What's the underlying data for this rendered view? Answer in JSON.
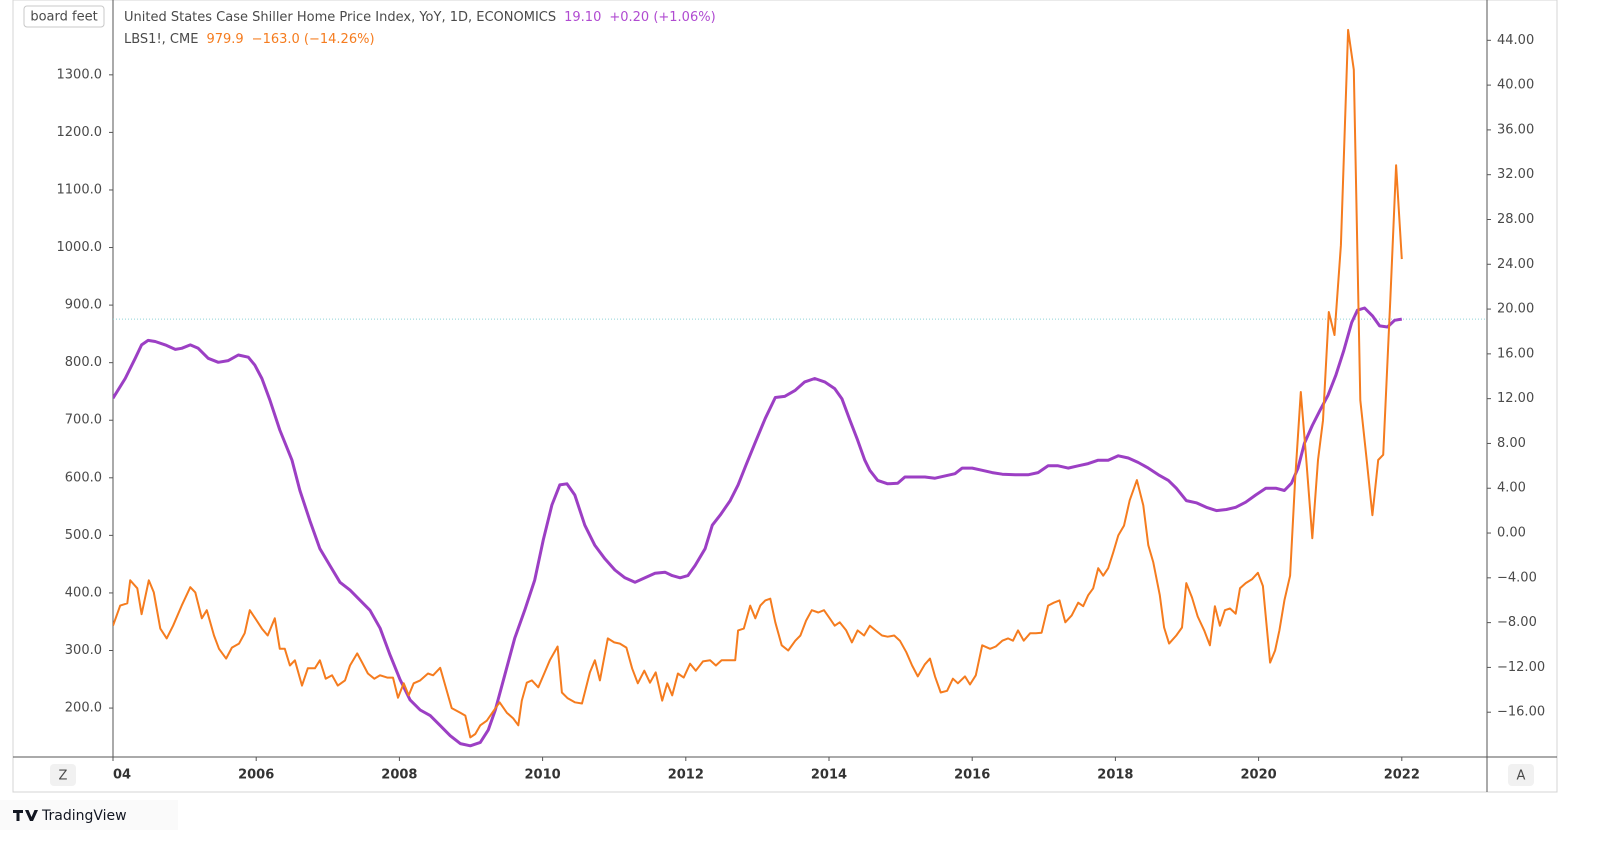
{
  "chart_data": {
    "type": "line",
    "y_axis_label": "board feet",
    "xlim": [
      2004,
      2023.19
    ],
    "xticks": [
      {
        "value": 2004,
        "label": "04"
      },
      2006,
      2008,
      2010,
      2012,
      2014,
      2016,
      2018,
      2020,
      2022
    ],
    "ylim": [
      115,
      1430
    ],
    "yticks": [
      {
        "value": 200,
        "label": "200.0"
      },
      {
        "value": 300,
        "label": "300.0"
      },
      {
        "value": 400,
        "label": "400.0"
      },
      {
        "value": 500,
        "label": "500.0"
      },
      {
        "value": 600,
        "label": "600.0"
      },
      {
        "value": 700,
        "label": "700.0"
      },
      {
        "value": 800,
        "label": "800.0"
      },
      {
        "value": 900,
        "label": "900.0"
      },
      {
        "value": 1000,
        "label": "1000.0"
      },
      {
        "value": 1100,
        "label": "1100.0"
      },
      {
        "value": 1200,
        "label": "1200.0"
      },
      {
        "value": 1300,
        "label": "1300.0"
      }
    ],
    "y2lim": [
      -20,
      47.6
    ],
    "y2ticks": [
      {
        "value": -16,
        "label": "−16.00"
      },
      {
        "value": -12,
        "label": "−12.00"
      },
      {
        "value": -8,
        "label": "−8.00"
      },
      {
        "value": -4,
        "label": "−4.00"
      },
      {
        "value": 0,
        "label": "0.00"
      },
      {
        "value": 4,
        "label": "4.00"
      },
      {
        "value": 8,
        "label": "8.00"
      },
      {
        "value": 12,
        "label": "12.00"
      },
      {
        "value": 16,
        "label": "16.00"
      },
      {
        "value": 20,
        "label": "20.00"
      },
      {
        "value": 24,
        "label": "24.00"
      },
      {
        "value": 28,
        "label": "28.00"
      },
      {
        "value": 32,
        "label": "32.00"
      },
      {
        "value": 36,
        "label": "36.00"
      },
      {
        "value": 40,
        "label": "40.00"
      },
      {
        "value": 44,
        "label": "44.00"
      }
    ],
    "series": [
      {
        "name": "United States Case Shiller Home Price Index, YoY, 1D, ECONOMICS",
        "last_label": "19.10",
        "change_label": "+0.20 (+1.06%)",
        "color": "#9c3fc4",
        "axis": "y2",
        "x": [
          2004.0,
          2004.17,
          2004.31,
          2004.4,
          2004.49,
          2004.59,
          2004.73,
          2004.87,
          2004.96,
          2005.08,
          2005.19,
          2005.33,
          2005.47,
          2005.61,
          2005.75,
          2005.89,
          2005.98,
          2006.08,
          2006.19,
          2006.33,
          2006.5,
          2006.61,
          2006.75,
          2006.89,
          2007.03,
          2007.17,
          2007.31,
          2007.45,
          2007.59,
          2007.73,
          2007.87,
          2008.01,
          2008.15,
          2008.29,
          2008.43,
          2008.57,
          2008.71,
          2008.85,
          2008.99,
          2009.13,
          2009.24,
          2009.34,
          2009.47,
          2009.61,
          2009.75,
          2009.89,
          2010.01,
          2010.13,
          2010.24,
          2010.34,
          2010.45,
          2010.59,
          2010.73,
          2010.87,
          2011.01,
          2011.15,
          2011.29,
          2011.43,
          2011.57,
          2011.71,
          2011.81,
          2011.92,
          2012.03,
          2012.13,
          2012.27,
          2012.37,
          2012.48,
          2012.62,
          2012.73,
          2012.84,
          2012.97,
          2013.11,
          2013.25,
          2013.38,
          2013.53,
          2013.66,
          2013.8,
          2013.94,
          2014.08,
          2014.18,
          2014.29,
          2014.4,
          2014.5,
          2014.57,
          2014.68,
          2014.82,
          2014.96,
          2015.06,
          2015.2,
          2015.34,
          2015.48,
          2015.62,
          2015.76,
          2015.86,
          2016.0,
          2016.14,
          2016.28,
          2016.42,
          2016.6,
          2016.78,
          2016.92,
          2017.06,
          2017.2,
          2017.34,
          2017.48,
          2017.62,
          2017.76,
          2017.9,
          2018.04,
          2018.18,
          2018.32,
          2018.46,
          2018.6,
          2018.74,
          2018.85,
          2018.99,
          2019.13,
          2019.27,
          2019.41,
          2019.55,
          2019.68,
          2019.82,
          2019.96,
          2020.1,
          2020.24,
          2020.36,
          2020.46,
          2020.55,
          2020.64,
          2020.75,
          2020.86,
          2020.97,
          2021.08,
          2021.19,
          2021.3,
          2021.38,
          2021.48,
          2021.59,
          2021.69,
          2021.8,
          2021.9,
          2022.0
        ],
        "values": [
          12.04,
          13.8,
          15.6,
          16.8,
          17.2,
          17.1,
          16.8,
          16.4,
          16.5,
          16.8,
          16.5,
          15.6,
          15.25,
          15.4,
          15.9,
          15.7,
          15.0,
          13.8,
          11.9,
          9.2,
          6.5,
          3.8,
          1.1,
          -1.4,
          -2.9,
          -4.4,
          -5.1,
          -6.0,
          -6.9,
          -8.5,
          -10.9,
          -13.1,
          -14.9,
          -15.8,
          -16.3,
          -17.2,
          -18.1,
          -18.8,
          -19.0,
          -18.7,
          -17.6,
          -15.8,
          -12.7,
          -9.4,
          -6.9,
          -4.2,
          -0.6,
          2.5,
          4.3,
          4.4,
          3.4,
          0.7,
          -1.1,
          -2.3,
          -3.3,
          -4.0,
          -4.4,
          -4.0,
          -3.6,
          -3.5,
          -3.8,
          -4.0,
          -3.8,
          -2.9,
          -1.4,
          0.7,
          1.6,
          2.9,
          4.3,
          6.05,
          8.1,
          10.25,
          12.1,
          12.2,
          12.75,
          13.5,
          13.8,
          13.5,
          12.9,
          12.0,
          10.1,
          8.3,
          6.5,
          5.6,
          4.7,
          4.4,
          4.45,
          5.0,
          5.0,
          5.0,
          4.9,
          5.1,
          5.3,
          5.8,
          5.8,
          5.6,
          5.4,
          5.25,
          5.2,
          5.2,
          5.4,
          6.0,
          6.0,
          5.8,
          6.0,
          6.2,
          6.5,
          6.5,
          6.9,
          6.7,
          6.3,
          5.8,
          5.2,
          4.7,
          4.0,
          2.9,
          2.7,
          2.3,
          2.0,
          2.1,
          2.3,
          2.75,
          3.4,
          4.0,
          4.0,
          3.8,
          4.45,
          5.8,
          8.0,
          9.6,
          11.0,
          12.3,
          14.1,
          16.3,
          18.8,
          19.9,
          20.1,
          19.4,
          18.5,
          18.4,
          19.0,
          19.1
        ]
      },
      {
        "name": "LBS1!, CME",
        "last_label": "979.9",
        "change_label": "−163.0 (−14.26%)",
        "color": "#f57c1f",
        "axis": "y",
        "x": [
          2004.0,
          2004.1,
          2004.2,
          2004.24,
          2004.34,
          2004.4,
          2004.5,
          2004.57,
          2004.66,
          2004.75,
          2004.84,
          2004.96,
          2005.08,
          2005.15,
          2005.24,
          2005.31,
          2005.41,
          2005.48,
          2005.58,
          2005.66,
          2005.76,
          2005.84,
          2005.91,
          2005.98,
          2006.08,
          2006.16,
          2006.26,
          2006.33,
          2006.4,
          2006.47,
          2006.54,
          2006.64,
          2006.72,
          2006.82,
          2006.89,
          2006.97,
          2007.06,
          2007.14,
          2007.24,
          2007.31,
          2007.41,
          2007.48,
          2007.56,
          2007.65,
          2007.73,
          2007.83,
          2007.91,
          2007.98,
          2008.06,
          2008.13,
          2008.2,
          2008.29,
          2008.4,
          2008.47,
          2008.57,
          2008.62,
          2008.73,
          2008.85,
          2008.92,
          2008.99,
          2009.06,
          2009.13,
          2009.22,
          2009.32,
          2009.4,
          2009.5,
          2009.59,
          2009.66,
          2009.71,
          2009.78,
          2009.85,
          2009.94,
          2010.03,
          2010.1,
          2010.21,
          2010.27,
          2010.35,
          2010.45,
          2010.55,
          2010.66,
          2010.73,
          2010.8,
          2010.91,
          2011.0,
          2011.08,
          2011.17,
          2011.25,
          2011.33,
          2011.42,
          2011.5,
          2011.58,
          2011.67,
          2011.74,
          2011.81,
          2011.89,
          2011.97,
          2012.06,
          2012.14,
          2012.24,
          2012.34,
          2012.42,
          2012.5,
          2012.6,
          2012.69,
          2012.73,
          2012.81,
          2012.9,
          2012.97,
          2013.04,
          2013.11,
          2013.18,
          2013.25,
          2013.34,
          2013.43,
          2013.53,
          2013.6,
          2013.68,
          2013.76,
          2013.85,
          2013.93,
          2014.01,
          2014.08,
          2014.15,
          2014.24,
          2014.32,
          2014.4,
          2014.49,
          2014.57,
          2014.65,
          2014.74,
          2014.82,
          2014.91,
          2014.99,
          2015.08,
          2015.16,
          2015.24,
          2015.34,
          2015.41,
          2015.48,
          2015.56,
          2015.65,
          2015.73,
          2015.8,
          2015.9,
          2015.97,
          2016.05,
          2016.14,
          2016.25,
          2016.33,
          2016.42,
          2016.5,
          2016.57,
          2016.64,
          2016.72,
          2016.81,
          2016.89,
          2016.97,
          2017.06,
          2017.14,
          2017.22,
          2017.3,
          2017.39,
          2017.48,
          2017.55,
          2017.62,
          2017.69,
          2017.76,
          2017.83,
          2017.9,
          2017.97,
          2018.04,
          2018.12,
          2018.2,
          2018.3,
          2018.39,
          2018.46,
          2018.53,
          2018.62,
          2018.68,
          2018.75,
          2018.85,
          2018.93,
          2018.99,
          2019.07,
          2019.15,
          2019.24,
          2019.32,
          2019.39,
          2019.46,
          2019.53,
          2019.6,
          2019.68,
          2019.74,
          2019.82,
          2019.91,
          2019.99,
          2020.06,
          2020.16,
          2020.23,
          2020.29,
          2020.36,
          2020.44,
          2020.51,
          2020.59,
          2020.66,
          2020.75,
          2020.83,
          2020.9,
          2020.98,
          2021.06,
          2021.15,
          2021.25,
          2021.33,
          2021.42,
          2021.51,
          2021.59,
          2021.67,
          2021.74,
          2021.84,
          2021.92,
          2022.0
        ],
        "values": [
          343,
          378,
          382,
          422,
          408,
          363,
          422,
          401,
          338,
          321,
          343,
          378,
          410,
          401,
          356,
          370,
          326,
          303,
          286,
          305,
          312,
          330,
          370,
          357,
          338,
          326,
          356,
          303,
          303,
          274,
          283,
          239,
          269,
          269,
          283,
          251,
          257,
          239,
          248,
          274,
          295,
          279,
          260,
          251,
          257,
          253,
          253,
          218,
          243,
          222,
          243,
          248,
          260,
          257,
          270,
          248,
          200,
          192,
          187,
          149,
          155,
          170,
          178,
          196,
          210,
          192,
          182,
          170,
          213,
          244,
          248,
          236,
          262,
          283,
          307,
          227,
          217,
          210,
          208,
          262,
          283,
          248,
          321,
          314,
          312,
          305,
          269,
          243,
          265,
          244,
          262,
          213,
          243,
          222,
          260,
          253,
          277,
          265,
          281,
          283,
          274,
          283,
          283,
          283,
          335,
          338,
          378,
          356,
          378,
          387,
          390,
          349,
          309,
          300,
          317,
          326,
          352,
          370,
          366,
          370,
          356,
          343,
          349,
          335,
          314,
          335,
          326,
          343,
          335,
          326,
          324,
          326,
          317,
          297,
          274,
          255,
          276,
          286,
          255,
          227,
          230,
          251,
          243,
          255,
          241,
          257,
          309,
          303,
          307,
          317,
          321,
          317,
          335,
          317,
          330,
          330,
          331,
          378,
          383,
          387,
          349,
          361,
          383,
          377,
          396,
          408,
          443,
          430,
          443,
          470,
          500,
          517,
          561,
          596,
          552,
          483,
          453,
          396,
          340,
          312,
          326,
          340,
          417,
          392,
          359,
          335,
          309,
          377,
          343,
          370,
          373,
          364,
          408,
          417,
          424,
          435,
          412,
          279,
          300,
          335,
          387,
          430,
          596,
          749,
          640,
          495,
          631,
          700,
          888,
          848,
          1004,
          1378,
          1309,
          735,
          631,
          535,
          631,
          640,
          909,
          1143,
          979.9
        ]
      }
    ],
    "buttons": [
      "Z",
      "A"
    ],
    "brand": "TradingView"
  }
}
